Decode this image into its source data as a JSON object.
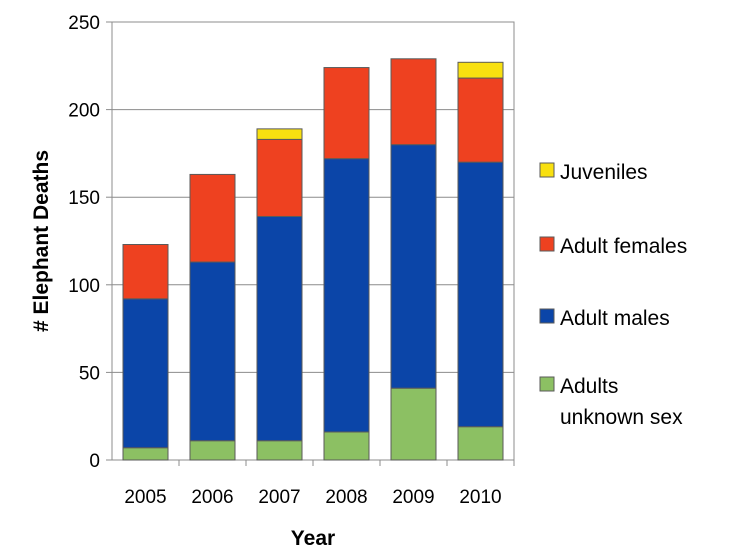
{
  "chart_data": {
    "type": "bar",
    "stacked": true,
    "title": "",
    "xlabel": "Year",
    "ylabel": "# Elephant Deaths",
    "ylim": [
      0,
      250
    ],
    "yticks": [
      0,
      50,
      100,
      150,
      200,
      250
    ],
    "grid": true,
    "legend_position": "right",
    "categories": [
      "2005",
      "2006",
      "2007",
      "2008",
      "2009",
      "2010"
    ],
    "series": [
      {
        "name": "Adults unknown sex",
        "color": "#8cc063",
        "values": [
          7,
          11,
          11,
          16,
          41,
          19
        ]
      },
      {
        "name": "Adult males",
        "color": "#0b45a8",
        "values": [
          85,
          102,
          128,
          156,
          139,
          151
        ]
      },
      {
        "name": "Adult females",
        "color": "#ee4120",
        "values": [
          31,
          50,
          44,
          52,
          49,
          48
        ]
      },
      {
        "name": "Juveniles",
        "color": "#f8e010",
        "values": [
          0,
          0,
          6,
          0,
          0,
          9
        ]
      }
    ],
    "legend": [
      {
        "lines": [
          "Juveniles"
        ],
        "color": "#f8e010"
      },
      {
        "lines": [
          "Adult females"
        ],
        "color": "#ee4120"
      },
      {
        "lines": [
          "Adult males"
        ],
        "color": "#0b45a8"
      },
      {
        "lines": [
          "Adults",
          "unknown sex"
        ],
        "color": "#8cc063"
      }
    ]
  }
}
